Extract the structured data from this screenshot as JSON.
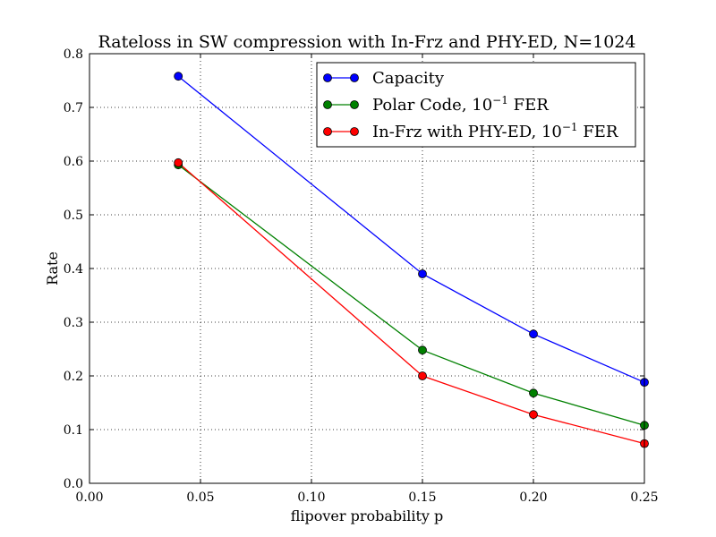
{
  "chart_data": {
    "type": "line",
    "title": "Rateloss in SW compression with In-Frz and PHY-ED, N=1024",
    "xlabel": "flipover probability p",
    "ylabel": "Rate",
    "xlim": [
      0.0,
      0.25
    ],
    "ylim": [
      0.0,
      0.8
    ],
    "grid": true,
    "legend_position": "top-right",
    "x_ticks": [
      "0.00",
      "0.05",
      "0.10",
      "0.15",
      "0.20",
      "0.25"
    ],
    "y_ticks": [
      "0.0",
      "0.1",
      "0.2",
      "0.3",
      "0.4",
      "0.5",
      "0.6",
      "0.7",
      "0.8"
    ],
    "x": [
      0.04,
      0.15,
      0.2,
      0.25
    ],
    "series": [
      {
        "name": "Capacity",
        "label_main": "Capacity",
        "label_exp": "",
        "label_tail": "",
        "color": "#0000ff",
        "values": [
          0.758,
          0.39,
          0.278,
          0.188
        ]
      },
      {
        "name": "Polar Code, 10^-1 FER",
        "label_main": "Polar Code, 10",
        "label_exp": "−1",
        "label_tail": " FER",
        "color": "#008000",
        "values": [
          0.593,
          0.248,
          0.168,
          0.108
        ]
      },
      {
        "name": "In-Frz with PHY-ED, 10^-1 FER",
        "label_main": "In-Frz with PHY-ED, 10",
        "label_exp": "−1",
        "label_tail": " FER",
        "color": "#ff0000",
        "values": [
          0.597,
          0.2,
          0.128,
          0.074
        ]
      }
    ]
  }
}
